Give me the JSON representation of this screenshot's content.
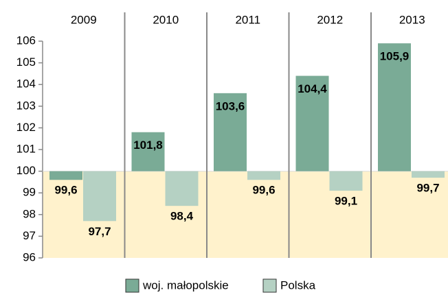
{
  "chart_data": {
    "type": "bar",
    "categories": [
      "2009",
      "2010",
      "2011",
      "2012",
      "2013"
    ],
    "series": [
      {
        "name": "woj. małopolskie",
        "color": "#7aab96",
        "values": [
          99.6,
          101.8,
          103.6,
          104.4,
          105.9
        ],
        "value_labels": [
          "99,6",
          "101,8",
          "103,6",
          "104,4",
          "105,9"
        ]
      },
      {
        "name": "Polska",
        "color": "#b5d1c3",
        "values": [
          97.7,
          98.4,
          99.6,
          99.1,
          99.7
        ],
        "value_labels": [
          "97,7",
          "98,4",
          "99,6",
          "99,1",
          "99,7"
        ]
      }
    ],
    "baseline": 100,
    "ylim": [
      96,
      106
    ],
    "yticks": [
      96,
      97,
      98,
      99,
      100,
      101,
      102,
      103,
      104,
      105,
      106
    ],
    "legend": "bottom"
  }
}
